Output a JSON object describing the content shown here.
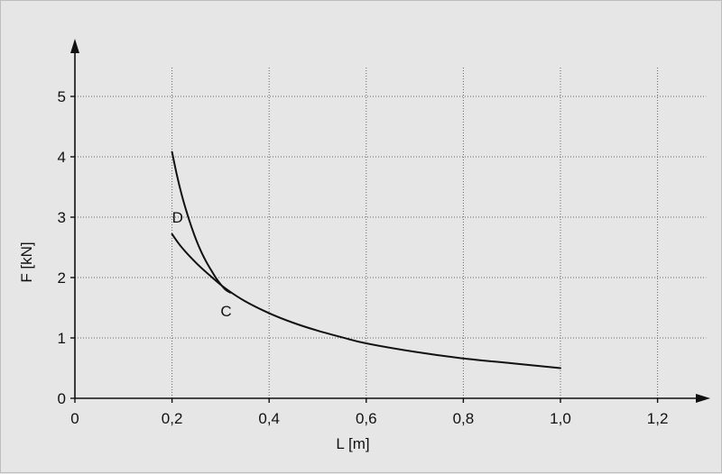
{
  "chart_data": {
    "type": "line",
    "title": "",
    "xlabel": "L [m]",
    "ylabel": "F [kN]",
    "xlim": [
      0,
      1.3
    ],
    "ylim": [
      0,
      5.5
    ],
    "grid": true,
    "x_ticks": [
      0,
      0.2,
      0.4,
      0.6,
      0.8,
      1.0,
      1.2
    ],
    "x_tick_labels": [
      "0",
      "0,2",
      "0,4",
      "0,6",
      "0,8",
      "1,0",
      "1,2"
    ],
    "y_ticks": [
      0,
      1,
      2,
      3,
      4,
      5
    ],
    "y_tick_labels": [
      "0",
      "1",
      "2",
      "3",
      "4",
      "5"
    ],
    "series": [
      {
        "name": "C",
        "x": [
          0.2,
          0.22,
          0.25,
          0.28,
          0.31,
          0.35,
          0.4,
          0.45,
          0.5,
          0.55,
          0.6,
          0.7,
          0.8,
          0.9,
          1.0
        ],
        "y": [
          2.72,
          2.5,
          2.24,
          2.02,
          1.82,
          1.61,
          1.41,
          1.25,
          1.12,
          1.01,
          0.91,
          0.77,
          0.66,
          0.58,
          0.5
        ]
      },
      {
        "name": "D",
        "x": [
          0.2,
          0.21,
          0.22,
          0.23,
          0.24,
          0.25,
          0.26,
          0.27,
          0.28,
          0.29,
          0.3,
          0.31,
          0.32
        ],
        "y": [
          4.08,
          3.7,
          3.37,
          3.09,
          2.84,
          2.62,
          2.43,
          2.27,
          2.13,
          2.0,
          1.89,
          1.8,
          1.75
        ]
      }
    ],
    "annotations": [
      {
        "text": "D",
        "x": 0.2,
        "y": 3.0
      },
      {
        "text": "C",
        "x": 0.3,
        "y": 1.45
      }
    ]
  }
}
